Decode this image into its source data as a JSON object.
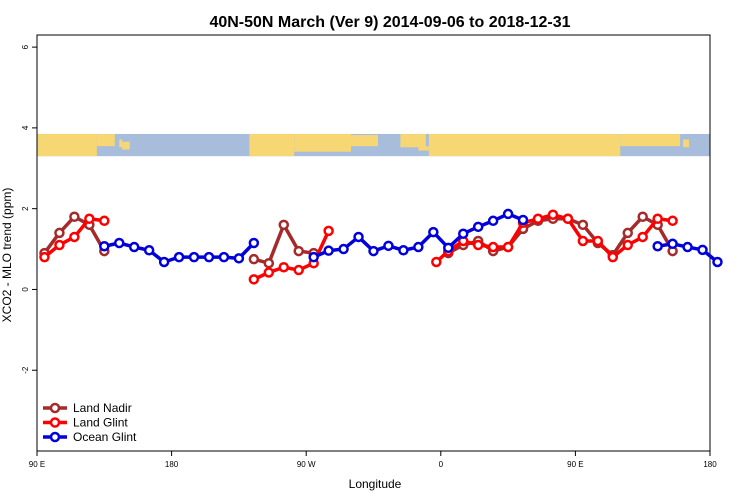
{
  "chart_data": {
    "type": "line",
    "title": "40N-50N March (Ver 9)   2014-09-06 to 2018-12-31",
    "xlabel": "Longitude",
    "ylabel": "XCO2 - MLO trend (ppm)",
    "xlim": [
      90,
      540
    ],
    "ylim": [
      -4,
      6.3
    ],
    "x_ticks": [
      {
        "value": 90,
        "label": "90 E"
      },
      {
        "value": 180,
        "label": "180"
      },
      {
        "value": 270,
        "label": "90 W"
      },
      {
        "value": 360,
        "label": "0"
      },
      {
        "value": 450,
        "label": "90 E"
      },
      {
        "value": 540,
        "label": "180"
      }
    ],
    "y_ticks": [
      {
        "value": -2,
        "label": "-2"
      },
      {
        "value": 0,
        "label": "0"
      },
      {
        "value": 2,
        "label": "2"
      },
      {
        "value": 4,
        "label": "4"
      },
      {
        "value": 6,
        "label": "6"
      }
    ],
    "map_band": {
      "y_from": 3.3,
      "y_to": 3.85,
      "land_color": "#F7D774",
      "ocean_color": "#A7BDDB"
    },
    "legend_position": "bottom-left",
    "series": [
      {
        "name": "Land Nadir",
        "color": "#A52A2A",
        "segments": [
          [
            [
              95,
              0.9
            ],
            [
              105,
              1.4
            ],
            [
              115,
              1.8
            ],
            [
              125,
              1.6
            ],
            [
              135,
              0.95
            ]
          ],
          [
            [
              235,
              0.75
            ],
            [
              245,
              0.65
            ],
            [
              255,
              1.6
            ],
            [
              265,
              0.95
            ],
            [
              275,
              0.9
            ]
          ],
          [
            [
              365,
              0.9
            ],
            [
              375,
              1.1
            ],
            [
              385,
              1.2
            ],
            [
              395,
              0.95
            ],
            [
              405,
              1.05
            ],
            [
              415,
              1.5
            ],
            [
              425,
              1.7
            ],
            [
              435,
              1.75
            ],
            [
              445,
              1.75
            ],
            [
              455,
              1.6
            ],
            [
              465,
              1.15
            ],
            [
              475,
              0.85
            ],
            [
              485,
              1.4
            ],
            [
              495,
              1.8
            ],
            [
              505,
              1.6
            ],
            [
              515,
              0.95
            ]
          ]
        ]
      },
      {
        "name": "Land Glint",
        "color": "#FF0000",
        "segments": [
          [
            [
              95,
              0.8
            ],
            [
              105,
              1.1
            ],
            [
              115,
              1.3
            ],
            [
              125,
              1.75
            ],
            [
              135,
              1.7
            ]
          ],
          [
            [
              235,
              0.25
            ],
            [
              245,
              0.42
            ],
            [
              255,
              0.55
            ],
            [
              265,
              0.48
            ],
            [
              275,
              0.65
            ],
            [
              285,
              1.45
            ]
          ],
          [
            [
              357,
              0.68
            ],
            [
              365,
              0.95
            ],
            [
              375,
              1.2
            ],
            [
              385,
              1.1
            ],
            [
              395,
              1.05
            ],
            [
              405,
              1.05
            ],
            [
              415,
              1.65
            ],
            [
              425,
              1.75
            ],
            [
              435,
              1.85
            ],
            [
              445,
              1.75
            ],
            [
              455,
              1.2
            ],
            [
              465,
              1.2
            ],
            [
              475,
              0.8
            ],
            [
              485,
              1.1
            ],
            [
              495,
              1.3
            ],
            [
              505,
              1.75
            ],
            [
              515,
              1.7
            ]
          ]
        ]
      },
      {
        "name": "Ocean Glint",
        "color": "#0000DD",
        "segments": [
          [
            [
              135,
              1.07
            ],
            [
              145,
              1.15
            ],
            [
              155,
              1.05
            ],
            [
              165,
              0.97
            ],
            [
              175,
              0.68
            ],
            [
              185,
              0.8
            ],
            [
              195,
              0.8
            ],
            [
              205,
              0.8
            ],
            [
              215,
              0.8
            ],
            [
              225,
              0.77
            ],
            [
              235,
              1.15
            ]
          ],
          [
            [
              275,
              0.8
            ],
            [
              285,
              0.96
            ],
            [
              295,
              1.0
            ],
            [
              305,
              1.3
            ],
            [
              315,
              0.95
            ],
            [
              325,
              1.08
            ],
            [
              335,
              0.97
            ],
            [
              345,
              1.05
            ],
            [
              355,
              1.42
            ],
            [
              365,
              1.03
            ],
            [
              375,
              1.38
            ],
            [
              385,
              1.55
            ],
            [
              395,
              1.7
            ],
            [
              405,
              1.87
            ],
            [
              415,
              1.72
            ]
          ],
          [
            [
              505,
              1.07
            ],
            [
              515,
              1.13
            ],
            [
              525,
              1.05
            ],
            [
              535,
              0.98
            ],
            [
              545,
              0.68
            ]
          ]
        ]
      }
    ]
  }
}
